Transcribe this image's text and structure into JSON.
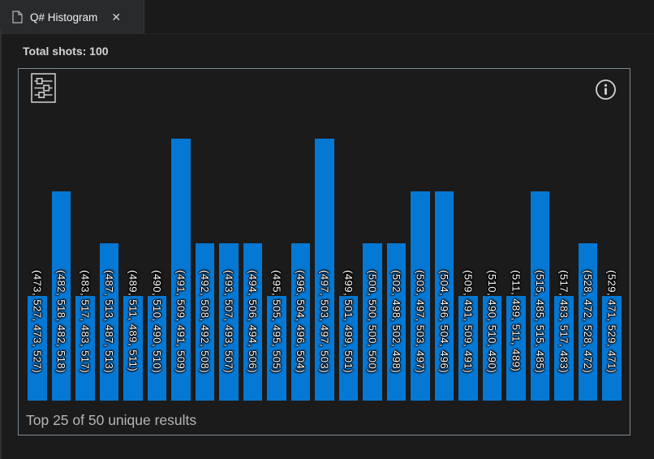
{
  "tab": {
    "title": "Q# Histogram",
    "close_glyph": "✕"
  },
  "icons": {
    "tab_file": "file-document",
    "tab_close": "close-x",
    "settings": "sliders-filter",
    "info": "info-circle"
  },
  "colors": {
    "bar": "#0578d4",
    "chart_border": "#7d8a93",
    "background": "#1b1b1c",
    "label_text": "#ffffff"
  },
  "total_shots_label": "Total shots: 100",
  "footer_label": "Top 25 of 50 unique results",
  "chart_data": {
    "type": "bar",
    "title": "Q# Histogram",
    "xlabel": "",
    "ylabel": "shots",
    "ylim": [
      0,
      5
    ],
    "grid": false,
    "legend": "none",
    "total_shots": 100,
    "unique_results": 50,
    "shown_results": 25,
    "categories": [
      "(473, 527, 473, 527)",
      "(482, 518, 482, 518)",
      "(483, 517, 483, 517)",
      "(487, 513, 487, 513)",
      "(489, 511, 489, 511)",
      "(490, 510, 490, 510)",
      "(491, 509, 491, 509)",
      "(492, 508, 492, 508)",
      "(493, 507, 493, 507)",
      "(494, 506, 494, 506)",
      "(495, 505, 495, 505)",
      "(496, 504, 496, 504)",
      "(497, 503, 497, 503)",
      "(499, 501, 499, 501)",
      "(500, 500, 500, 500)",
      "(502, 498, 502, 498)",
      "(503, 497, 503, 497)",
      "(504, 496, 504, 496)",
      "(509, 491, 509, 491)",
      "(510, 490, 510, 490)",
      "(511, 489, 511, 489)",
      "(515, 485, 515, 485)",
      "(517, 483, 517, 483)",
      "(528, 472, 528, 472)",
      "(529, 471, 529, 471)"
    ],
    "values": [
      2,
      4,
      2,
      3,
      2,
      2,
      5,
      3,
      3,
      3,
      2,
      3,
      5,
      2,
      3,
      3,
      4,
      4,
      2,
      2,
      2,
      4,
      2,
      3,
      2
    ]
  }
}
